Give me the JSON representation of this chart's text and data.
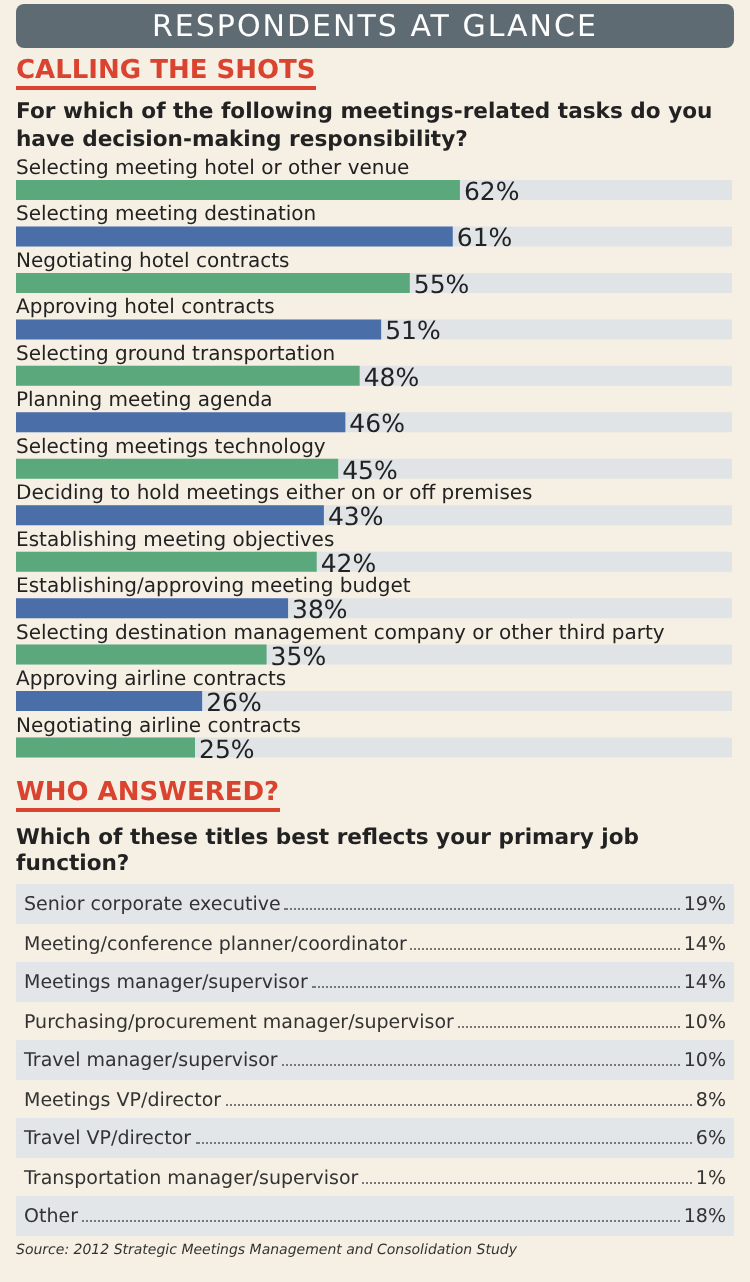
{
  "chart_data": [
    {
      "type": "bar",
      "orientation": "horizontal",
      "annotations": [
        "RESPONDENTS AT GLANCE"
      ],
      "title": "CALLING THE SHOTS",
      "subtitle": "For which of the following meetings-related tasks do you have decision-making responsibility?",
      "categories": [
        "Selecting meeting hotel or other venue",
        "Selecting meeting destination",
        "Negotiating hotel contracts",
        "Approving hotel contracts",
        "Selecting ground transportation",
        "Planning meeting agenda",
        "Selecting meetings technology",
        "Deciding to hold meetings either on or off premises",
        "Establishing meeting objectives",
        "Establishing/approving meeting budget",
        "Selecting destination management company or other third party",
        "Approving airline contracts",
        "Negotiating airline contracts"
      ],
      "values": [
        62,
        61,
        55,
        51,
        48,
        46,
        45,
        43,
        42,
        38,
        35,
        26,
        25
      ],
      "value_labels": [
        "62%",
        "61%",
        "55%",
        "51%",
        "48%",
        "46%",
        "45%",
        "43%",
        "42%",
        "38%",
        "35%",
        "26%",
        "25%"
      ],
      "colors": [
        "#5aa87c",
        "#4a6ea8",
        "#5aa87c",
        "#4a6ea8",
        "#5aa87c",
        "#4a6ea8",
        "#5aa87c",
        "#4a6ea8",
        "#5aa87c",
        "#4a6ea8",
        "#5aa87c",
        "#4a6ea8",
        "#5aa87c"
      ],
      "xlim": [
        0,
        100
      ]
    },
    {
      "type": "other",
      "title": "WHO ANSWERED?",
      "subtitle": "Which of these titles best reflects your primary job function?",
      "categories": [
        "Senior corporate executive",
        "Meeting/conference planner/coordinator",
        "Meetings manager/supervisor",
        "Purchasing/procurement manager/supervisor",
        "Travel manager/supervisor",
        "Meetings VP/director",
        "Travel VP/director",
        "Transportation manager/supervisor",
        "Other"
      ],
      "values": [
        19,
        14,
        14,
        10,
        10,
        8,
        6,
        1,
        18
      ],
      "value_labels": [
        "19%",
        "14%",
        "14%",
        "10%",
        "10%",
        "8%",
        "6%",
        "1%",
        "18%"
      ],
      "annotations": [
        "Source: 2012 Strategic Meetings Management and Consolidation Study"
      ]
    }
  ]
}
